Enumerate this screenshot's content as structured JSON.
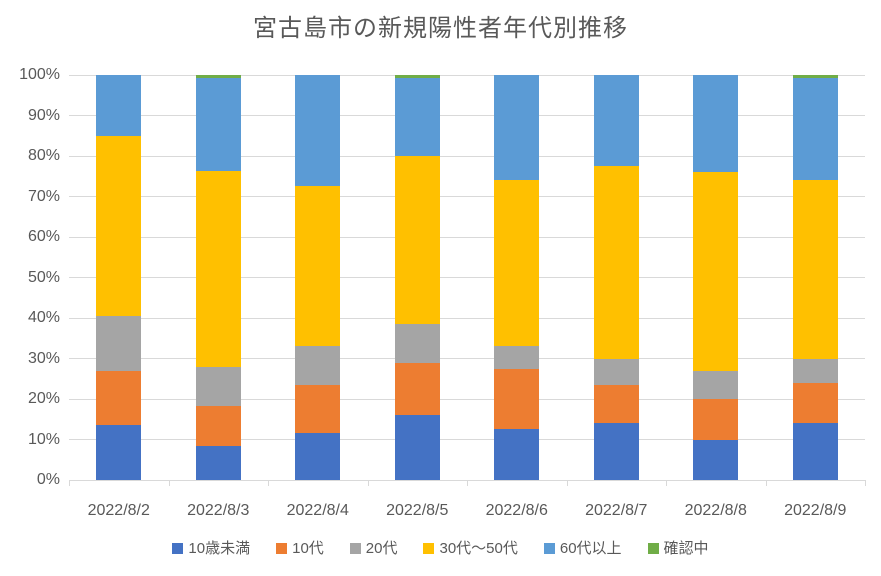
{
  "title": "宮古島市の新規陽性者年代別推移",
  "colors": {
    "text": "#595959",
    "gridline": "#d9d9d9",
    "background": "#ffffff"
  },
  "chart_data": {
    "type": "bar",
    "variant": "100%-stacked-column",
    "title": "宮古島市の新規陽性者年代別推移",
    "categories": [
      "2022/8/2",
      "2022/8/3",
      "2022/8/4",
      "2022/8/5",
      "2022/8/6",
      "2022/8/7",
      "2022/8/8",
      "2022/8/9"
    ],
    "series": [
      {
        "name": "10歳未満",
        "color": "#4472C4",
        "values": [
          13.5,
          8.3,
          11.5,
          16.0,
          12.5,
          14.0,
          10.0,
          14.0
        ]
      },
      {
        "name": "10代",
        "color": "#ED7D31",
        "values": [
          13.5,
          9.9,
          12.0,
          13.0,
          15.0,
          9.5,
          10.0,
          10.0
        ]
      },
      {
        "name": "20代",
        "color": "#A5A5A5",
        "values": [
          13.5,
          9.6,
          9.5,
          9.5,
          5.5,
          6.5,
          7.0,
          6.0
        ]
      },
      {
        "name": "30代～50代",
        "color": "#FFC000",
        "values": [
          44.5,
          48.4,
          39.5,
          41.5,
          41.0,
          47.5,
          49.0,
          44.0
        ]
      },
      {
        "name": "60代以上",
        "color": "#5B9BD5",
        "values": [
          15.0,
          23.1,
          27.5,
          19.3,
          26.0,
          22.5,
          24.0,
          25.3
        ]
      },
      {
        "name": "確認中",
        "color": "#70AD47",
        "values": [
          0.0,
          0.7,
          0.0,
          0.7,
          0.0,
          0.0,
          0.0,
          0.7
        ]
      }
    ],
    "ylim": [
      0,
      100
    ],
    "ytick_labels": [
      "0%",
      "10%",
      "20%",
      "30%",
      "40%",
      "50%",
      "60%",
      "70%",
      "80%",
      "90%",
      "100%"
    ],
    "xlabel": "",
    "ylabel": "",
    "grid": true,
    "legend_position": "bottom"
  }
}
